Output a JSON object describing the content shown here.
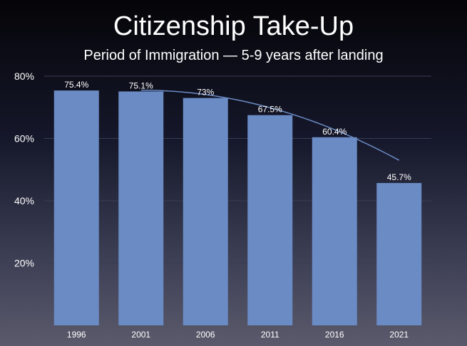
{
  "title": "Citizenship Take-Up",
  "subtitle": "Period of Immigration — 5-9 years after landing",
  "colors": {
    "bar": "#6a8bc4",
    "trend": "#6a8bc4",
    "grid": "#3a3c55"
  },
  "chart_data": {
    "type": "bar",
    "title": "Citizenship Take-Up",
    "subtitle": "Period of Immigration — 5-9 years after landing",
    "categories": [
      "1996",
      "2001",
      "2006",
      "2011",
      "2016",
      "2021"
    ],
    "values": [
      75.4,
      75.1,
      73,
      67.5,
      60.4,
      45.7
    ],
    "data_labels": [
      "75.4%",
      "75.1%",
      "73%",
      "67.5%",
      "60.4%",
      "45.7%"
    ],
    "ylim": [
      0,
      80
    ],
    "yticks": [
      20,
      40,
      60,
      80
    ],
    "ytick_labels": [
      "20%",
      "40%",
      "60%",
      "80%"
    ],
    "grid": true,
    "trendline": {
      "type": "polynomial",
      "from_category": "2001",
      "to_category": "2021",
      "start_value": 75.5,
      "end_value": 53
    }
  }
}
